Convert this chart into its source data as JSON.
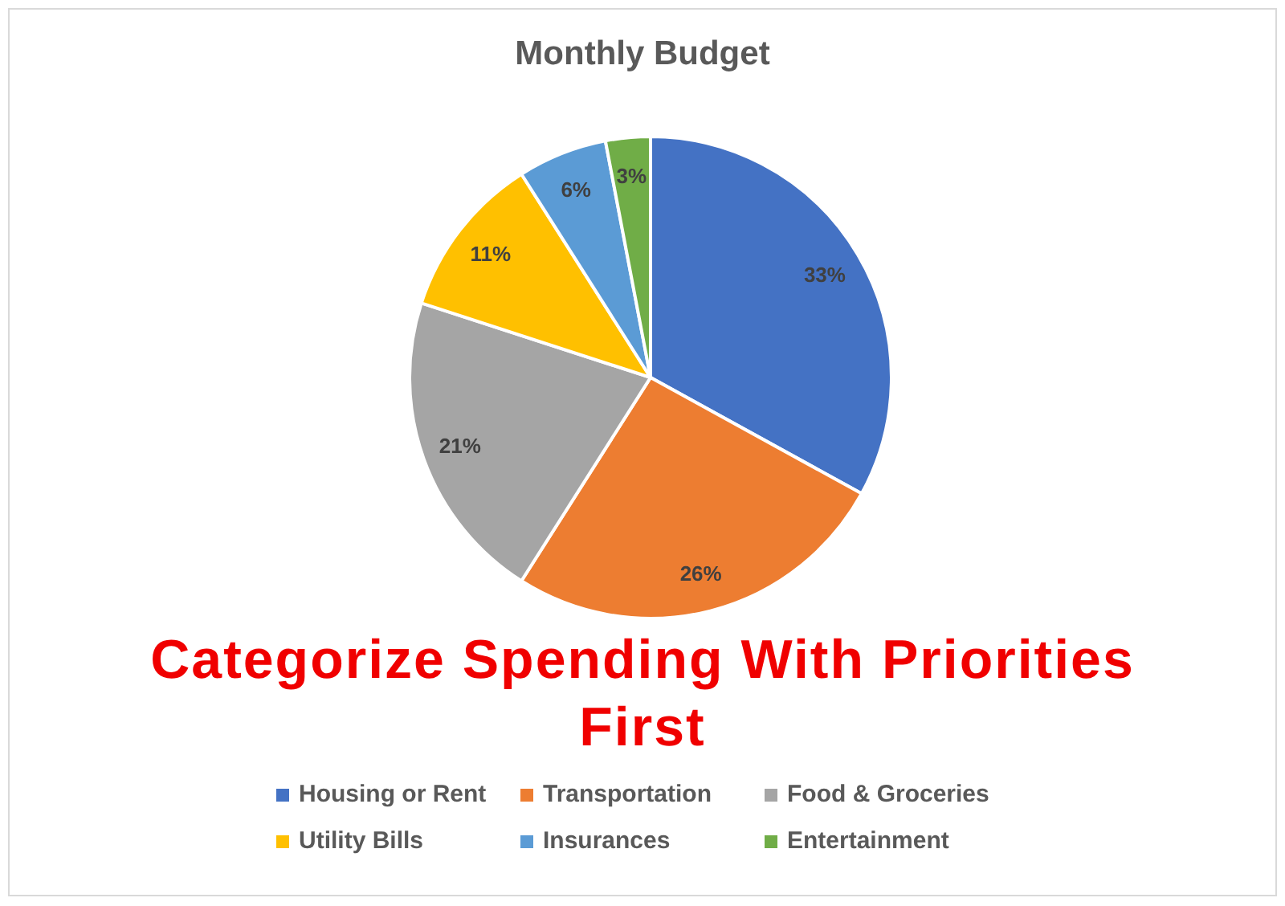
{
  "chart_data": {
    "type": "pie",
    "title": "Monthly Budget",
    "categories": [
      "Housing or Rent",
      "Transportation",
      "Food & Groceries",
      "Utility Bills",
      "Insurances",
      "Entertainment"
    ],
    "values": [
      33,
      26,
      21,
      11,
      6,
      3
    ],
    "colors": [
      "#4472c4",
      "#ed7d31",
      "#a5a5a5",
      "#ffc000",
      "#5b9bd5",
      "#70ad47"
    ],
    "value_labels": [
      "33%",
      "26%",
      "21%",
      "11%",
      "6%",
      "3%"
    ],
    "legend": "bottom",
    "annotations": [
      "Categorize Spending With Priorities First"
    ]
  }
}
